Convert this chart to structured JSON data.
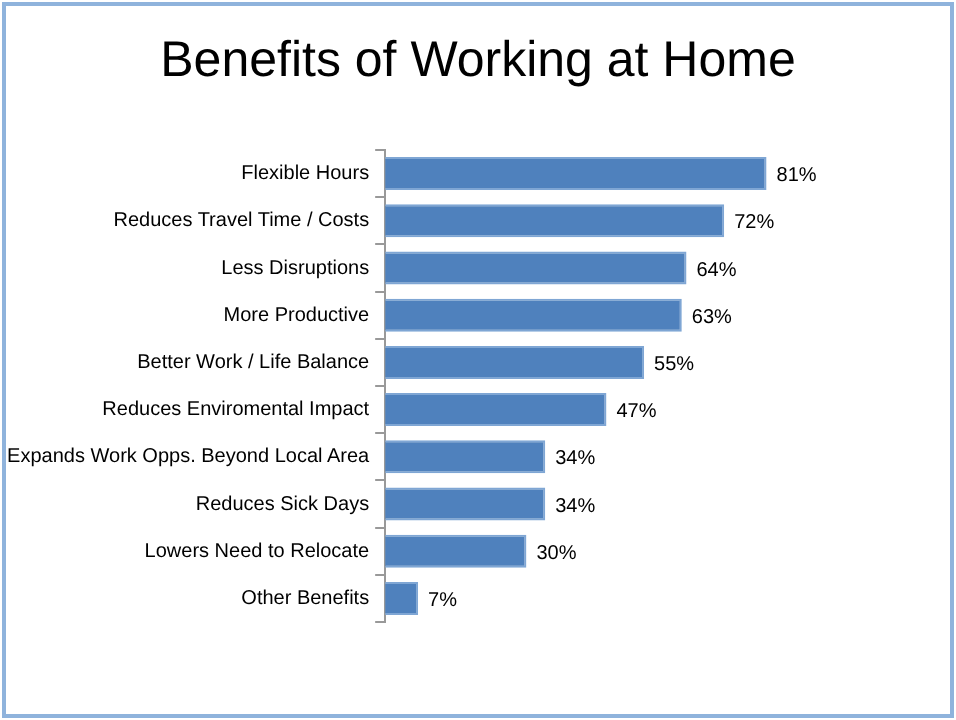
{
  "chart_data": {
    "type": "bar",
    "orientation": "horizontal",
    "title": "Benefits of Working at Home",
    "categories": [
      "Flexible Hours",
      "Reduces Travel Time / Costs",
      "Less Disruptions",
      "More Productive",
      "Better Work / Life Balance",
      "Reduces Enviromental Impact",
      "Expands Work Opps. Beyond Local Area",
      "Reduces Sick Days",
      "Lowers Need to Relocate",
      "Other Benefits"
    ],
    "values": [
      81,
      72,
      64,
      63,
      55,
      47,
      34,
      34,
      30,
      7
    ],
    "value_labels": [
      "81%",
      "72%",
      "64%",
      "63%",
      "55%",
      "47%",
      "34%",
      "34%",
      "30%",
      "7%"
    ],
    "color": "#4f81bd",
    "legend": false,
    "grid": false
  }
}
